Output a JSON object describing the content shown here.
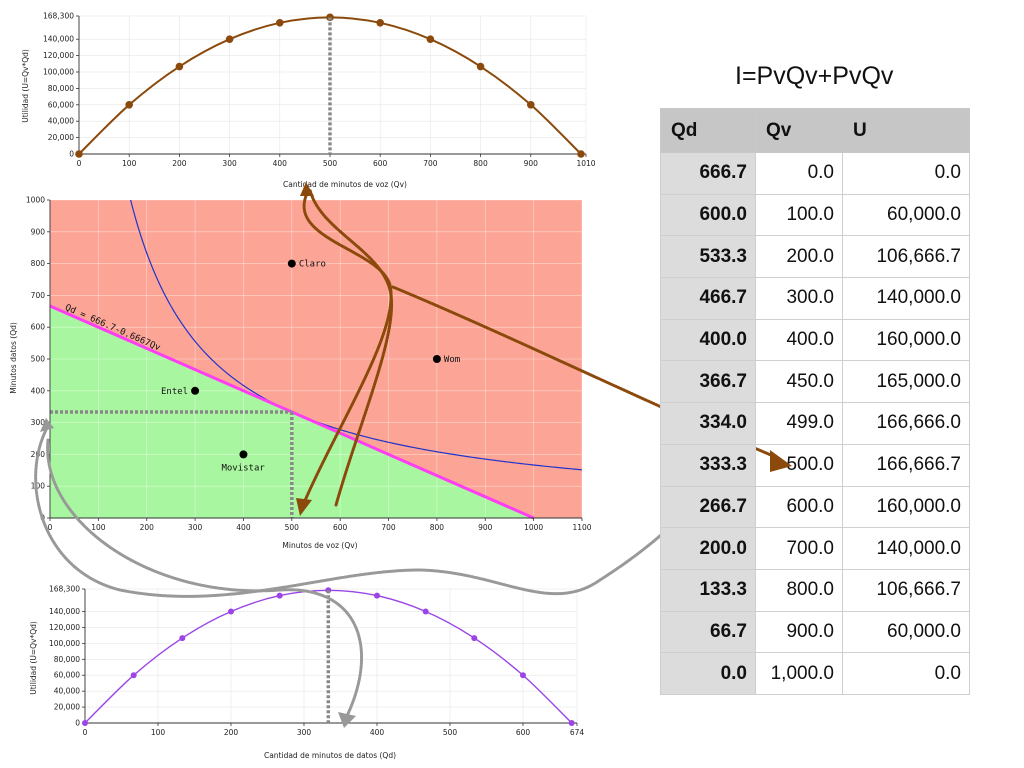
{
  "formula": "I=PvQv+PvQv",
  "colors": {
    "top_curve": "#8b4a0c",
    "bottom_curve": "#9b45e6",
    "budget_line": "#ff3df2",
    "indiff_curve": "#2233cc",
    "region_above": "#fca597",
    "region_below": "#a8f7a0",
    "arrow_brown": "#8b4a0c",
    "arrow_gray": "#999999"
  },
  "table": {
    "headers": [
      "Qd",
      "Qv",
      "U"
    ],
    "rows": [
      [
        "666.7",
        "0.0",
        "0.0"
      ],
      [
        "600.0",
        "100.0",
        "60,000.0"
      ],
      [
        "533.3",
        "200.0",
        "106,666.7"
      ],
      [
        "466.7",
        "300.0",
        "140,000.0"
      ],
      [
        "400.0",
        "400.0",
        "160,000.0"
      ],
      [
        "366.7",
        "450.0",
        "165,000.0"
      ],
      [
        "334.0",
        "499.0",
        "166,666.0"
      ],
      [
        "333.3",
        "500.0",
        "166,666.7"
      ],
      [
        "266.7",
        "600.0",
        "160,000.0"
      ],
      [
        "200.0",
        "700.0",
        "140,000.0"
      ],
      [
        "133.3",
        "800.0",
        "106,666.7"
      ],
      [
        "66.7",
        "900.0",
        "60,000.0"
      ],
      [
        "0.0",
        "1,000.0",
        "0.0"
      ]
    ]
  },
  "chart_data": [
    {
      "type": "line",
      "xlabel": "Cantidad de minutos de voz (Qv)",
      "ylabel": "Utilidad (U=Qv*Qd)",
      "xlim": [
        0,
        1010
      ],
      "ylim": [
        0,
        168300
      ],
      "xticks": [
        "0",
        "100",
        "200",
        "300",
        "400",
        "500",
        "600",
        "700",
        "800",
        "900",
        "1010"
      ],
      "xtick_values": [
        0,
        100,
        200,
        300,
        400,
        500,
        600,
        700,
        800,
        900,
        1010
      ],
      "yticks": [
        "0",
        "20,000",
        "40,000",
        "60,000",
        "80,000",
        "100,000",
        "120,000",
        "140,000",
        "168,300"
      ],
      "ytick_values": [
        0,
        20000,
        40000,
        60000,
        80000,
        100000,
        120000,
        140000,
        168300
      ],
      "series": [
        {
          "x": [
            0,
            100,
            200,
            300,
            400,
            500,
            600,
            700,
            800,
            900,
            1000
          ],
          "y": [
            0,
            60000,
            106666.7,
            140000,
            160000,
            166666.7,
            160000,
            140000,
            106666.7,
            60000,
            0
          ]
        }
      ],
      "marker_x": 500
    },
    {
      "type": "area",
      "xlabel": "Minutos de voz (Qv)",
      "ylabel": "Minutos datos (Qd)",
      "xlim": [
        0,
        1100
      ],
      "ylim": [
        0,
        1000
      ],
      "xticks": [
        "0",
        "100",
        "200",
        "300",
        "400",
        "500",
        "600",
        "700",
        "800",
        "900",
        "1000",
        "1100"
      ],
      "xtick_values": [
        0,
        100,
        200,
        300,
        400,
        500,
        600,
        700,
        800,
        900,
        1000,
        1100
      ],
      "yticks": [
        "0",
        "100",
        "200",
        "300",
        "400",
        "500",
        "600",
        "700",
        "800",
        "900",
        "1000"
      ],
      "ytick_values": [
        0,
        100,
        200,
        300,
        400,
        500,
        600,
        700,
        800,
        900,
        1000
      ],
      "budget_line": {
        "label": "Qd = 666.7-0.6667Qv",
        "intercept": 666.7,
        "slope": -0.6667
      },
      "indifference_curve": {
        "k": 166666.7
      },
      "optimum": {
        "x": 500,
        "y": 333.3
      },
      "points": [
        {
          "label": "Claro",
          "x": 500,
          "y": 800
        },
        {
          "label": "Wom",
          "x": 800,
          "y": 500
        },
        {
          "label": "Entel",
          "x": 300,
          "y": 400
        },
        {
          "label": "Movistar",
          "x": 400,
          "y": 200
        }
      ]
    },
    {
      "type": "line",
      "xlabel": "Cantidad de minutos de datos (Qd)",
      "ylabel": "Utilidad (U=Qv*Qd)",
      "xlim": [
        0,
        674
      ],
      "ylim": [
        0,
        168300
      ],
      "xticks": [
        "0",
        "100",
        "200",
        "300",
        "400",
        "500",
        "600",
        "674"
      ],
      "xtick_values": [
        0,
        100,
        200,
        300,
        400,
        500,
        600,
        674
      ],
      "yticks": [
        "0",
        "20,000",
        "40,000",
        "60,000",
        "80,000",
        "100,000",
        "120,000",
        "140,000",
        "168,300"
      ],
      "ytick_values": [
        0,
        20000,
        40000,
        60000,
        80000,
        100000,
        120000,
        140000,
        168300
      ],
      "series": [
        {
          "x": [
            0,
            66.7,
            133.3,
            200,
            266.7,
            333.3,
            400,
            466.7,
            533.3,
            600,
            666.7
          ],
          "y": [
            0,
            60000,
            106666.7,
            140000,
            160000,
            166666.7,
            160000,
            140000,
            106666.7,
            60000,
            0
          ]
        }
      ],
      "marker_x": 333.3
    }
  ]
}
